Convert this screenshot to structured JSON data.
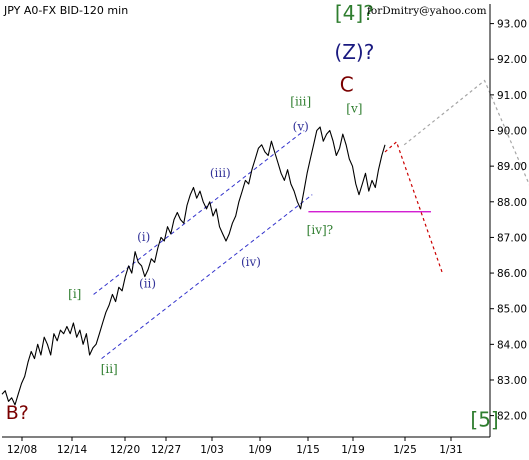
{
  "chart_data": {
    "type": "line",
    "title": "JPY A0-FX BID-120 min",
    "credit": "forDmitry@yahoo.com",
    "y_ticks": [
      "93.00",
      "92.00",
      "91.00",
      "90.00",
      "89.00",
      "88.00",
      "87.00",
      "86.00",
      "85.00",
      "84.00",
      "83.00",
      "82.00"
    ],
    "ylim": [
      81.4,
      93.55
    ],
    "x_ticks": [
      "12/08",
      "12/14",
      "12/20",
      "12/27",
      "1/03",
      "1/09",
      "1/15",
      "1/19",
      "1/25",
      "1/31"
    ],
    "grid": false,
    "series": [
      {
        "values": [
          82.6,
          82.7,
          82.4,
          82.5,
          82.3,
          82.6,
          82.9,
          83.1,
          83.5,
          83.8,
          83.6,
          84.0,
          83.7,
          84.2,
          84.0,
          83.7,
          84.3,
          84.1,
          84.4,
          84.3,
          84.5,
          84.3,
          84.6,
          84.2,
          84.4,
          84.0,
          84.3,
          83.7,
          83.9,
          84.0,
          84.3,
          84.6,
          84.9,
          85.1,
          85.4,
          85.2,
          85.6,
          85.5,
          85.9,
          86.2,
          86.0,
          86.6,
          86.3,
          86.2,
          85.9,
          86.1,
          86.4,
          86.3,
          86.7,
          87.0,
          86.9,
          87.3,
          87.1,
          87.5,
          87.7,
          87.5,
          87.4,
          87.9,
          88.2,
          88.4,
          88.1,
          88.3,
          88.0,
          87.8,
          88.0,
          87.6,
          87.8,
          87.3,
          87.1,
          86.9,
          87.1,
          87.4,
          87.6,
          88.0,
          88.3,
          88.6,
          88.5,
          88.9,
          89.2,
          89.5,
          89.6,
          89.4,
          89.3,
          89.7,
          89.4,
          89.1,
          88.8,
          88.6,
          88.9,
          88.5,
          88.3,
          88.0,
          87.8,
          88.3,
          88.8,
          89.2,
          89.6,
          90.0,
          90.1,
          89.7,
          89.9,
          90.0,
          89.7,
          89.3,
          89.5,
          89.9,
          89.6,
          89.2,
          89.0,
          88.5,
          88.2,
          88.5,
          88.8,
          88.3,
          88.6,
          88.4,
          88.9,
          89.3,
          89.6
        ]
      }
    ],
    "forecast": [
      {
        "name": "red-dotted",
        "color": "#cc0000",
        "x": [
          1.0,
          1.03,
          1.15
        ],
        "y": [
          89.4,
          89.68,
          86.0
        ]
      },
      {
        "name": "gray-dotted",
        "color": "#a6a6a6",
        "x": [
          1.05,
          1.26,
          1.4
        ],
        "y": [
          89.6,
          91.4,
          87.9
        ]
      }
    ],
    "support_line": {
      "color": "#cc00cc",
      "y": 87.72
    },
    "wave_labels": [
      {
        "text": "B?",
        "color": "#7a0000",
        "y": 81.9,
        "x": 0.04
      },
      {
        "text": "[i]",
        "color": "#2e7d2e",
        "y": 85.3,
        "x": 0.19
      },
      {
        "text": "[ii]",
        "color": "#2e7d2e",
        "y": 83.2,
        "x": 0.28
      },
      {
        "text": "(i)",
        "color": "#333399",
        "y": 86.9,
        "x": 0.37
      },
      {
        "text": "(ii)",
        "color": "#333399",
        "y": 85.6,
        "x": 0.38
      },
      {
        "text": "(iii)",
        "color": "#333399",
        "y": 88.7,
        "x": 0.57
      },
      {
        "text": "(iv)",
        "color": "#333399",
        "y": 86.2,
        "x": 0.65
      },
      {
        "text": "(v)",
        "color": "#333399",
        "y": 90.0,
        "x": 0.78
      },
      {
        "text": "[iii]",
        "color": "#2e7d2e",
        "y": 90.7,
        "x": 0.78
      },
      {
        "text": "[iv]?",
        "color": "#2e7d2e",
        "y": 87.1,
        "x": 0.83
      },
      {
        "text": "[v]",
        "color": "#2e7d2e",
        "y": 90.5,
        "x": 0.92
      },
      {
        "text": "C",
        "color": "#7a0000",
        "y": 91.1,
        "x": 0.9
      },
      {
        "text": "(Z)?",
        "color": "#1a1a80",
        "y": 92.0,
        "x": 0.92
      },
      {
        "text": "[4]?",
        "color": "#2e7d2e",
        "y": 93.1,
        "x": 0.92
      },
      {
        "text": "[5]",
        "color": "#2e7d2e",
        "y": 81.7,
        "x": 1.26
      }
    ]
  }
}
